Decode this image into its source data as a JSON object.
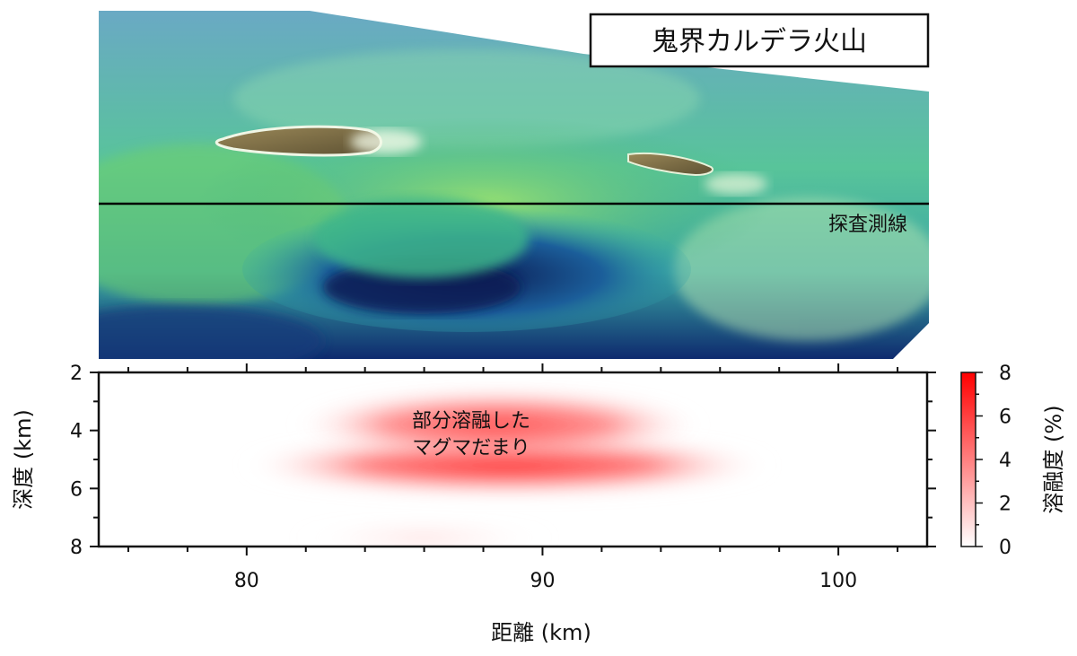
{
  "map": {
    "title": "鬼界カルデラ火山",
    "survey_line_label": "探査測線"
  },
  "section": {
    "anomaly_label_line1": "部分溶融した",
    "anomaly_label_line2": "マグマだまり"
  },
  "chart_data": {
    "type": "heatmap",
    "title": "",
    "xlabel": "距離 (km)",
    "ylabel": "深度 (km)",
    "xlim": [
      75,
      103
    ],
    "ylim": [
      8,
      2
    ],
    "x_ticks": [
      80,
      90,
      100
    ],
    "y_ticks": [
      2,
      4,
      6,
      8
    ],
    "colorbar": {
      "label": "溶融度 (%)",
      "range": [
        0,
        8
      ],
      "ticks": [
        0,
        2,
        4,
        6,
        8
      ],
      "colors": [
        "#ffffff",
        "#ff0000"
      ]
    },
    "anomalies": [
      {
        "name": "部分溶融したマグマだまり",
        "x_range": [
          79,
          98
        ],
        "depth_range": [
          2.6,
          6.3
        ],
        "max_melt_percent": 4
      }
    ]
  },
  "colors": {
    "deep": "#0b1f5c",
    "mid": "#1f8fb4",
    "shallow": "#5fd06a",
    "crest": "#e9f6c8",
    "island": "#7a6a44",
    "melt": "#ff3b3b"
  }
}
